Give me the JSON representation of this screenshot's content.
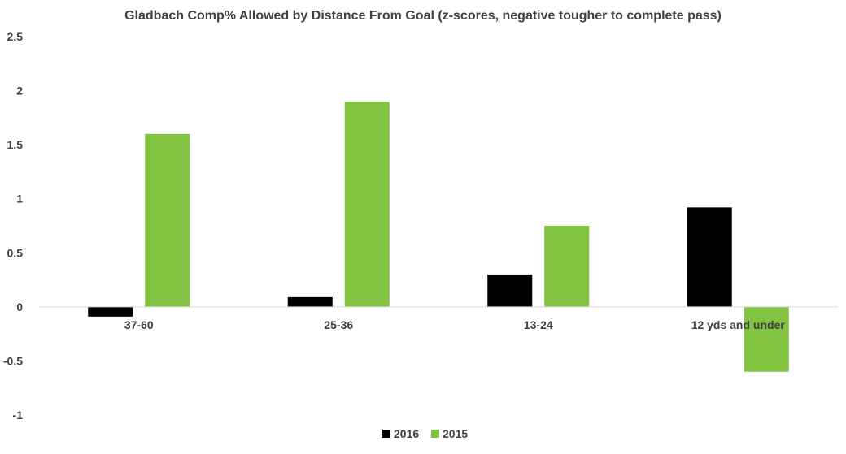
{
  "chart_data": {
    "type": "bar",
    "title": "Gladbach Comp% Allowed by Distance From Goal (z-scores, negative tougher to complete pass)",
    "categories": [
      "37-60",
      "25-36",
      "13-24",
      "12 yds and under"
    ],
    "series": [
      {
        "name": "2016",
        "color": "#000000",
        "values": [
          -0.09,
          0.09,
          0.3,
          0.92
        ]
      },
      {
        "name": "2015",
        "color": "#82c341",
        "values": [
          1.6,
          1.9,
          0.75,
          -0.6
        ]
      }
    ],
    "yticks": [
      "2.5",
      "2",
      "1.5",
      "1",
      "0.5",
      "0",
      "-0.5",
      "-1"
    ],
    "ylim": [
      -1,
      2.5
    ],
    "grid": false,
    "legend": "bottom"
  }
}
